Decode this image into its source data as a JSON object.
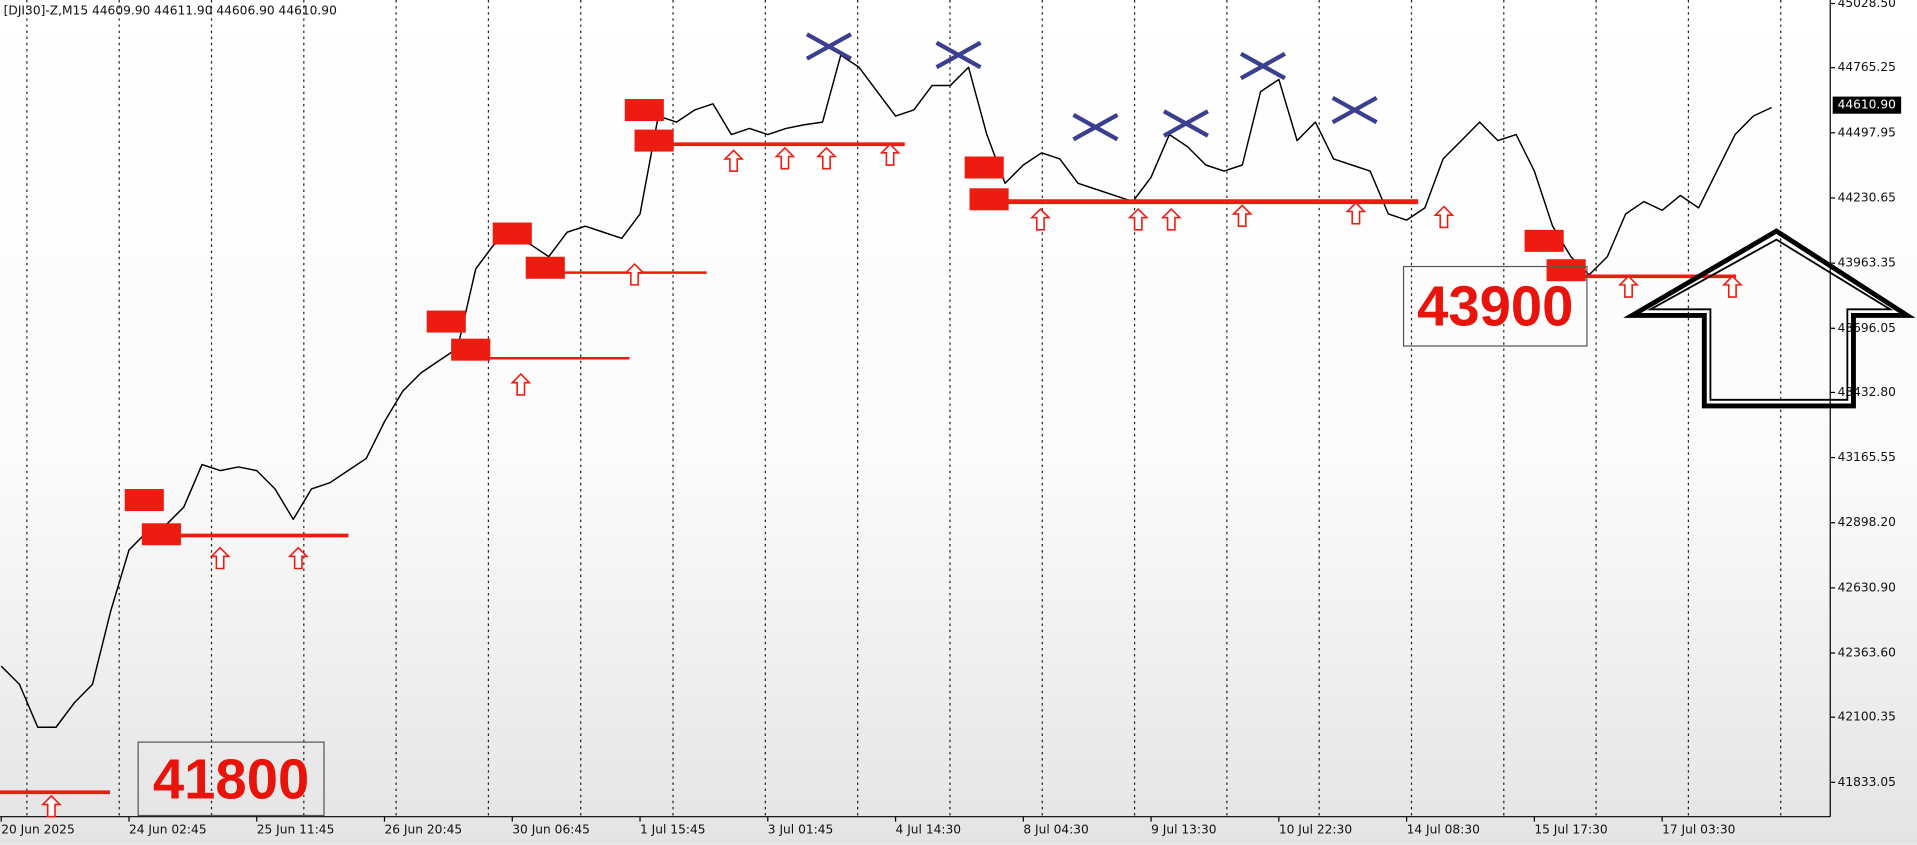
{
  "chart_data": {
    "type": "line",
    "title": "[DJI30]-Z,M15  44609.90 44611.90 44606.90 44610.90",
    "price_label": "44610.90",
    "annotations": [
      "41800",
      "43900"
    ],
    "categories": [
      "20 Jun 2025",
      null,
      null,
      null,
      null,
      null,
      null,
      "24 Jun 02:45",
      null,
      null,
      null,
      null,
      null,
      null,
      "25 Jun 11:45",
      null,
      null,
      null,
      null,
      null,
      null,
      "26 Jun 20:45",
      null,
      null,
      null,
      null,
      null,
      null,
      "30 Jun 06:45",
      null,
      null,
      null,
      null,
      null,
      null,
      "1 Jul 15:45",
      null,
      null,
      null,
      null,
      null,
      null,
      "3 Jul 01:45",
      null,
      null,
      null,
      null,
      null,
      null,
      "4 Jul 14:30",
      null,
      null,
      null,
      null,
      null,
      null,
      "8 Jul 04:30",
      null,
      null,
      null,
      null,
      null,
      null,
      "9 Jul 13:30",
      null,
      null,
      null,
      null,
      null,
      null,
      "10 Jul 22:30",
      null,
      null,
      null,
      null,
      null,
      null,
      "14 Jul 08:30",
      null,
      null,
      null,
      null,
      null,
      null,
      "15 Jul 17:30",
      null,
      null,
      null,
      null,
      null,
      null,
      "17 Jul 03:30",
      null,
      null,
      null,
      null,
      null,
      null
    ],
    "series": [
      {
        "name": "DJI30",
        "color": "#000000",
        "values": [
          42310,
          42235,
          42059,
          42059,
          42159,
          42235,
          42536,
          42786,
          42862,
          42887,
          42962,
          43137,
          43112,
          43127,
          43112,
          43037,
          42912,
          43037,
          43062,
          43112,
          43162,
          43313,
          43438,
          43513,
          43564,
          43614,
          43940,
          44040,
          44065,
          44040,
          43990,
          44090,
          44115,
          44090,
          44065,
          44165,
          44567,
          44542,
          44592,
          44617,
          44491,
          44516,
          44491,
          44516,
          44531,
          44542,
          44817,
          44767,
          44667,
          44567,
          44592,
          44692,
          44692,
          44767,
          44491,
          44291,
          44366,
          44416,
          44391,
          44291,
          44266,
          44241,
          44216,
          44316,
          44491,
          44441,
          44366,
          44341,
          44366,
          44667,
          44717,
          44466,
          44542,
          44391,
          44366,
          44341,
          44165,
          44140,
          44190,
          44391,
          44466,
          44542,
          44466,
          44491,
          44341,
          44115,
          43990,
          43915,
          43990,
          44165,
          44216,
          44180,
          44241,
          44190,
          44341,
          44491,
          44567,
          44602
        ]
      }
    ],
    "ylim": [
      41692,
      45043
    ],
    "yticks": [
      {
        "value": 45028.5,
        "label": "45028.50"
      },
      44765.25,
      44497.95,
      44230.65,
      43963.35,
      43696.05,
      {
        "value": 43432.8,
        "label": "43432.80"
      },
      43165.55,
      {
        "value": 42898.2,
        "label": "42898.20"
      },
      {
        "value": 42630.9,
        "label": "42630.90"
      },
      {
        "value": 42363.6,
        "label": "42363.60"
      },
      42100.35,
      41833.05
    ],
    "grid": true
  }
}
